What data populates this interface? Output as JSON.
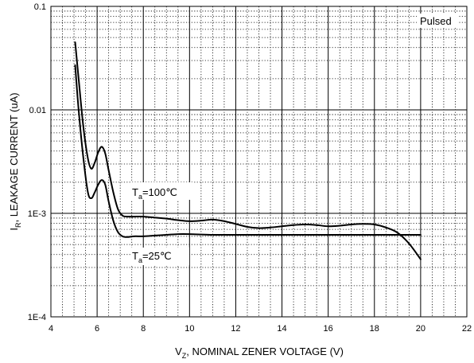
{
  "chart_data": {
    "type": "line",
    "annotation": "Pulsed",
    "xlabel": {
      "main": "V",
      "sub": "Z",
      "rest": ", NOMINAL ZENER VOLTAGE (V)"
    },
    "ylabel": {
      "main": "I",
      "sub": "R",
      "rest": ", LEAKAGE CURRENT (uA)"
    },
    "xlim": [
      4,
      22
    ],
    "ylim": [
      0.0001,
      0.1
    ],
    "yscale": "log",
    "grid": true,
    "x_ticks": [
      {
        "v": 4,
        "label": "4"
      },
      {
        "v": 6,
        "label": "6"
      },
      {
        "v": 8,
        "label": "8"
      },
      {
        "v": 10,
        "label": "10"
      },
      {
        "v": 12,
        "label": "12"
      },
      {
        "v": 14,
        "label": "14"
      },
      {
        "v": 16,
        "label": "16"
      },
      {
        "v": 18,
        "label": "18"
      },
      {
        "v": 20,
        "label": "20"
      },
      {
        "v": 22,
        "label": "22"
      }
    ],
    "y_ticks": [
      {
        "v": 0.0001,
        "label": "1E-4"
      },
      {
        "v": 0.001,
        "label": "1E-3"
      },
      {
        "v": 0.01,
        "label": "0.01"
      },
      {
        "v": 0.1,
        "label": "0.1"
      }
    ],
    "series": [
      {
        "name_main": "T",
        "name_sub": "a",
        "name_rest": "=100℃",
        "x": [
          5.05,
          5.2,
          5.4,
          5.6,
          5.75,
          5.9,
          6.05,
          6.2,
          6.35,
          6.5,
          6.7,
          6.9,
          7.1,
          7.3,
          7.6,
          8.0,
          8.5,
          9.0,
          9.5,
          10.0,
          10.5,
          11.0,
          11.5,
          12.0,
          12.5,
          13.0,
          13.5,
          14.0,
          14.5,
          15.0,
          15.5,
          16.0,
          16.5,
          17.0,
          17.5,
          18.0,
          18.5,
          19.0,
          19.5,
          20.0
        ],
        "y": [
          0.045,
          0.02,
          0.007,
          0.0034,
          0.0027,
          0.0031,
          0.0039,
          0.0044,
          0.0038,
          0.0026,
          0.0016,
          0.0011,
          0.00095,
          0.00093,
          0.00093,
          0.00093,
          0.00091,
          0.00089,
          0.00086,
          0.00084,
          0.00085,
          0.00087,
          0.00084,
          0.00079,
          0.00074,
          0.00072,
          0.00073,
          0.00075,
          0.00077,
          0.00078,
          0.00077,
          0.00075,
          0.00076,
          0.00078,
          0.00079,
          0.00078,
          0.00073,
          0.00065,
          0.00051,
          0.00036
        ]
      },
      {
        "name_main": "T",
        "name_sub": "a",
        "name_rest": "=25℃",
        "x": [
          5.05,
          5.2,
          5.4,
          5.6,
          5.75,
          5.9,
          6.05,
          6.2,
          6.35,
          6.5,
          6.7,
          6.9,
          7.1,
          7.3,
          7.6,
          8.0,
          8.5,
          9.0,
          9.5,
          10.0,
          11.0,
          12.0,
          13.0,
          14.0,
          15.0,
          16.0,
          17.0,
          18.0,
          19.0,
          20.0
        ],
        "y": [
          0.027,
          0.01,
          0.0035,
          0.0016,
          0.0014,
          0.0016,
          0.0019,
          0.0021,
          0.0019,
          0.0013,
          0.00085,
          0.00066,
          0.0006,
          0.00059,
          0.0006,
          0.0006,
          0.00061,
          0.00062,
          0.00063,
          0.00063,
          0.00062,
          0.00062,
          0.00062,
          0.00062,
          0.00062,
          0.00062,
          0.00062,
          0.00062,
          0.00062,
          0.00062
        ]
      }
    ]
  }
}
